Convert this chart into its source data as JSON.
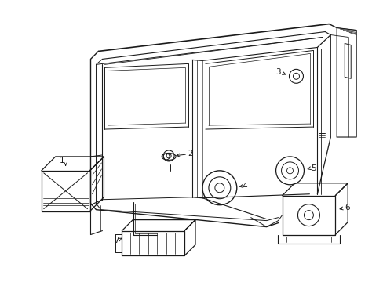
{
  "background_color": "#ffffff",
  "line_color": "#1a1a1a",
  "figsize": [
    4.89,
    3.6
  ],
  "dpi": 100,
  "font_size": 7.5
}
